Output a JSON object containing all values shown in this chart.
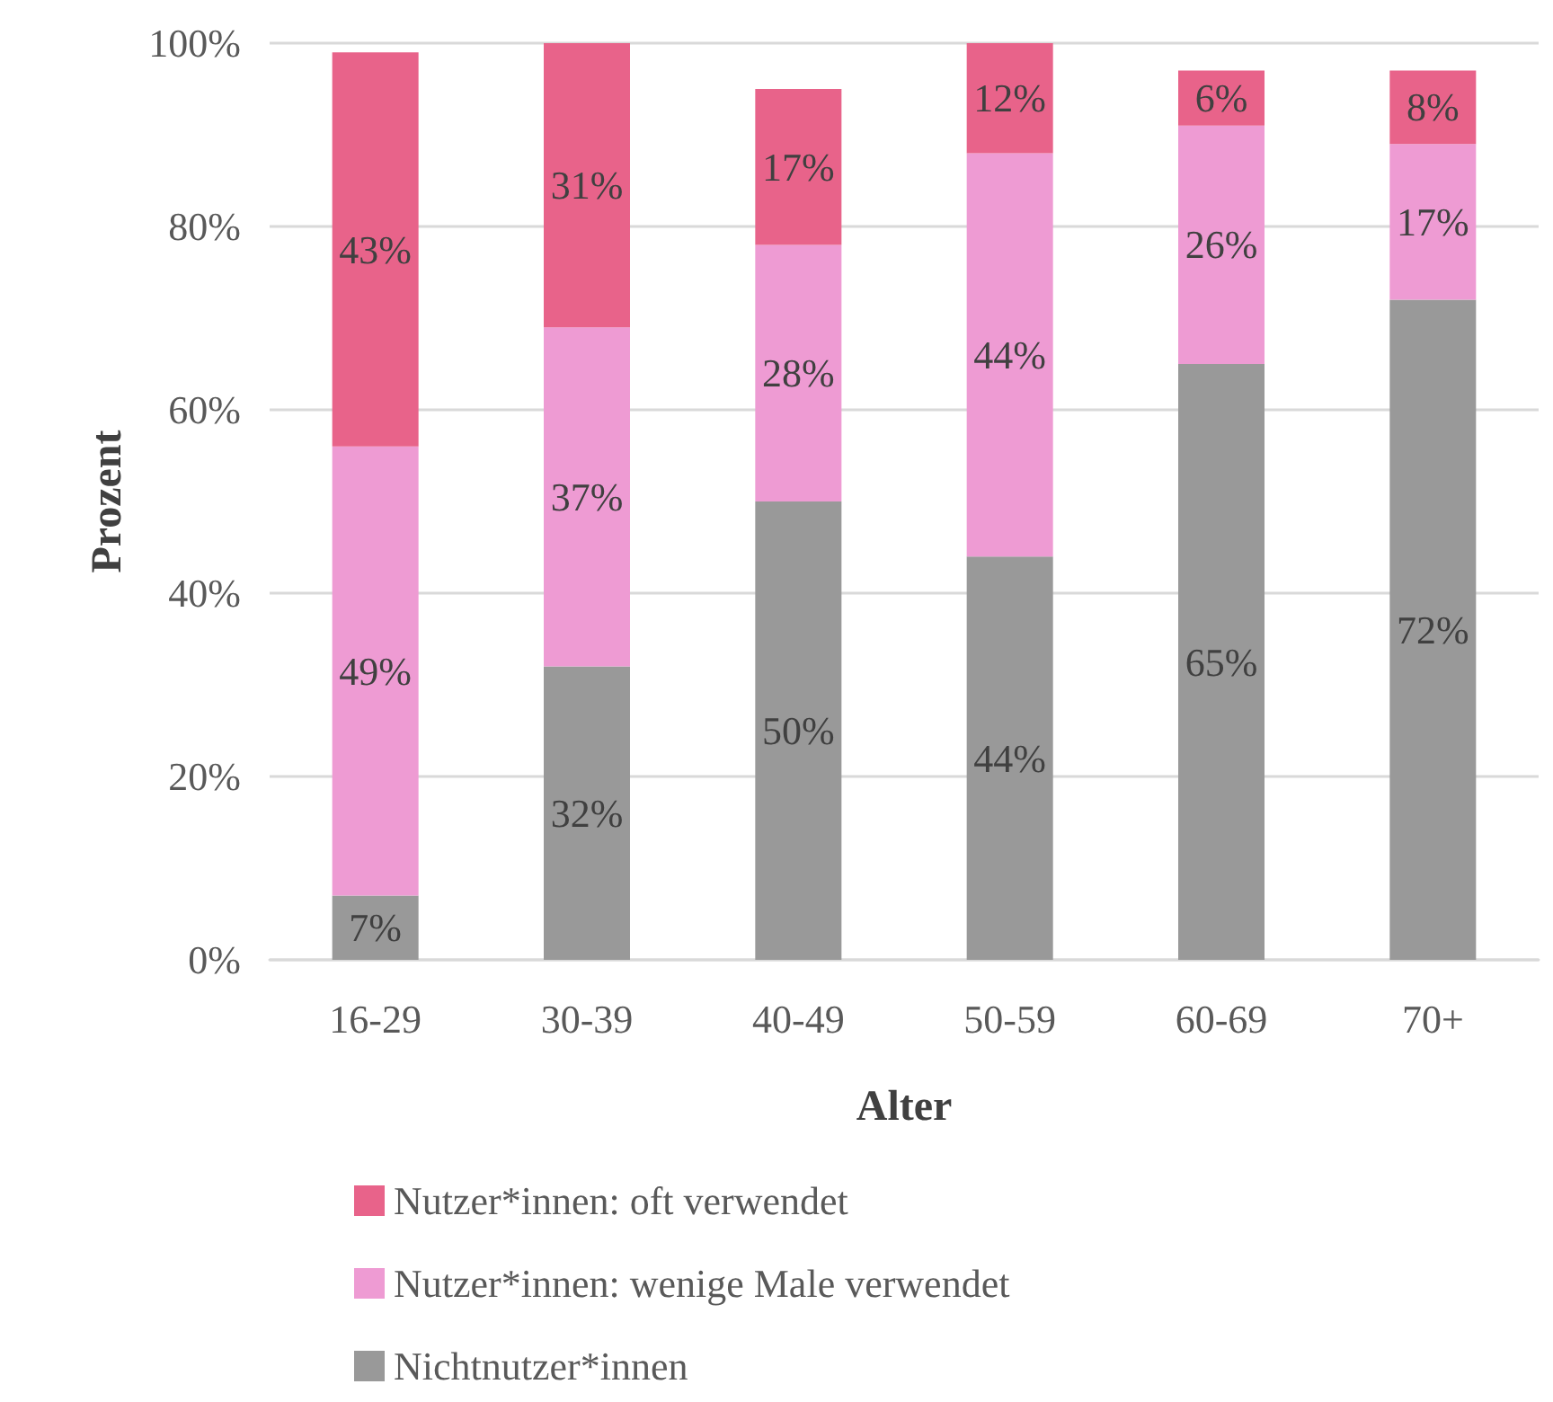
{
  "chart_data": {
    "type": "bar",
    "stacked": true,
    "xlabel": "Alter",
    "ylabel": "Prozent",
    "categories": [
      "16-29",
      "30-39",
      "40-49",
      "50-59",
      "60-69",
      "70+"
    ],
    "series": [
      {
        "name": "Nichtnutzer*innen",
        "color": "#999999",
        "values": [
          7,
          32,
          50,
          44,
          65,
          72
        ],
        "value_labels": [
          "7%",
          "32%",
          "50%",
          "44%",
          "65%",
          "72%"
        ]
      },
      {
        "name": "Nutzer*innen: wenige Male verwendet",
        "color": "#ee9bd3",
        "values": [
          49,
          37,
          28,
          44,
          26,
          17
        ],
        "value_labels": [
          "49%",
          "37%",
          "28%",
          "44%",
          "26%",
          "17%"
        ]
      },
      {
        "name": "Nutzer*innen: oft verwendet",
        "color": "#e8638a",
        "values": [
          43,
          31,
          17,
          12,
          6,
          8
        ],
        "value_labels": [
          "43%",
          "31%",
          "17%",
          "12%",
          "6%",
          "8%"
        ]
      }
    ],
    "ylim": [
      0,
      100
    ],
    "yticks": [
      {
        "value": 0,
        "label": "0%"
      },
      {
        "value": 20,
        "label": "20%"
      },
      {
        "value": 40,
        "label": "40%"
      },
      {
        "value": 60,
        "label": "60%"
      },
      {
        "value": 80,
        "label": "80%"
      },
      {
        "value": 100,
        "label": "100%"
      }
    ],
    "grid": "y",
    "legend": "bottom"
  }
}
